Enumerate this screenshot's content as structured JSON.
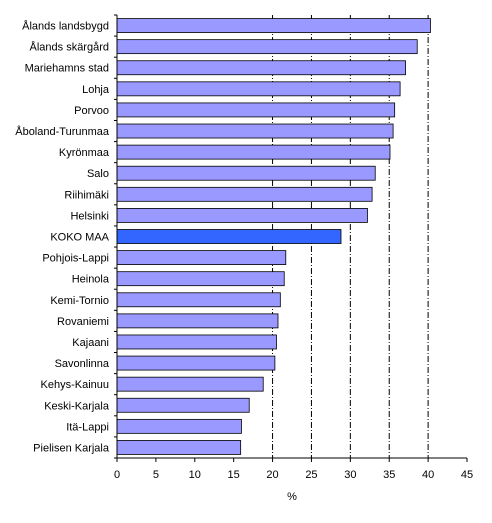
{
  "chart_data": {
    "type": "bar",
    "orientation": "horizontal",
    "title": "",
    "xlabel": "%",
    "ylabel": "",
    "xlim": [
      0,
      45
    ],
    "xticks": [
      0,
      5,
      10,
      15,
      20,
      25,
      30,
      35,
      40,
      45
    ],
    "xtick_labels": [
      "0",
      "5",
      "10",
      "15",
      "20",
      "25",
      "30",
      "35",
      "40",
      "45"
    ],
    "grid": "vertical dash-dot at 20, 25, 30, 35, 40",
    "legend": "none",
    "categories": [
      "Ålands landsbygd",
      "Ålands skärgård",
      "Mariehamns stad",
      "Lohja",
      "Porvoo",
      "Åboland-Turunmaa",
      "Kyrönmaa",
      "Salo",
      "Riihimäki",
      "Helsinki",
      "KOKO MAA",
      "Pohjois-Lappi",
      "Heinola",
      "Kemi-Tornio",
      "Rovaniemi",
      "Kajaani",
      "Savonlinna",
      "Kehys-Kainuu",
      "Keski-Karjala",
      "Itä-Lappi",
      "Pielisen Karjala"
    ],
    "values": [
      40.3,
      38.6,
      37.1,
      36.4,
      35.7,
      35.5,
      35.1,
      33.2,
      32.8,
      32.2,
      28.8,
      21.7,
      21.5,
      21.0,
      20.7,
      20.5,
      20.3,
      18.8,
      17.0,
      16.0,
      15.9
    ],
    "highlight": "KOKO MAA",
    "colors": {
      "bar": "#9999ff",
      "bar_highlight": "#3366ff",
      "bar_border": "#000000",
      "grid": "#000000"
    }
  }
}
